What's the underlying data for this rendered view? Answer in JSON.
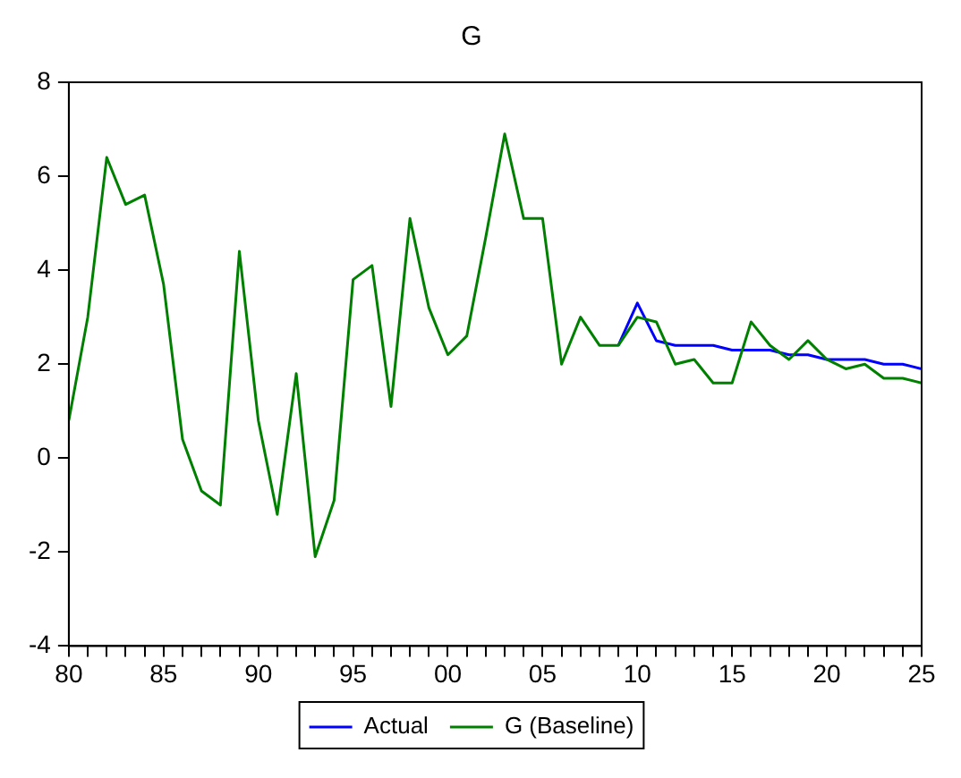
{
  "chart_data": {
    "type": "line",
    "title": "G",
    "x": [
      1980,
      1981,
      1982,
      1983,
      1984,
      1985,
      1986,
      1987,
      1988,
      1989,
      1990,
      1991,
      1992,
      1993,
      1994,
      1995,
      1996,
      1997,
      1998,
      1999,
      2000,
      2001,
      2002,
      2003,
      2004,
      2005,
      2006,
      2007,
      2008,
      2009,
      2010,
      2011,
      2012,
      2013,
      2014,
      2015,
      2016,
      2017,
      2018,
      2019,
      2020,
      2021,
      2022,
      2023,
      2024,
      2025
    ],
    "series": [
      {
        "name": "Actual",
        "color": "#0000ff",
        "values": [
          null,
          null,
          null,
          null,
          null,
          null,
          null,
          null,
          null,
          null,
          null,
          null,
          null,
          null,
          null,
          null,
          null,
          null,
          null,
          null,
          null,
          null,
          null,
          null,
          null,
          null,
          null,
          null,
          null,
          2.4,
          3.3,
          2.5,
          2.4,
          2.4,
          2.4,
          2.3,
          2.3,
          2.3,
          2.2,
          2.2,
          2.1,
          2.1,
          2.1,
          2.0,
          2.0,
          1.9
        ]
      },
      {
        "name": "G (Baseline)",
        "color": "#008000",
        "values": [
          0.8,
          3.0,
          6.4,
          5.4,
          5.6,
          3.7,
          0.4,
          -0.7,
          -1.0,
          4.4,
          0.8,
          -1.2,
          1.8,
          -2.1,
          -0.9,
          3.8,
          4.1,
          1.1,
          5.1,
          3.2,
          2.2,
          2.6,
          4.7,
          6.9,
          5.1,
          5.1,
          2.0,
          3.0,
          2.4,
          2.4,
          3.0,
          2.9,
          2.0,
          2.1,
          1.6,
          1.6,
          2.9,
          2.4,
          2.1,
          2.5,
          2.1,
          1.9,
          2.0,
          1.7,
          1.7,
          1.6
        ]
      }
    ],
    "xlim": [
      1980,
      2025
    ],
    "xticks": [
      {
        "value": 1980,
        "label": "80"
      },
      {
        "value": 1981,
        "label": null
      },
      {
        "value": 1982,
        "label": null
      },
      {
        "value": 1983,
        "label": null
      },
      {
        "value": 1984,
        "label": null
      },
      {
        "value": 1985,
        "label": "85"
      },
      {
        "value": 1986,
        "label": null
      },
      {
        "value": 1987,
        "label": null
      },
      {
        "value": 1988,
        "label": null
      },
      {
        "value": 1989,
        "label": null
      },
      {
        "value": 1990,
        "label": "90"
      },
      {
        "value": 1991,
        "label": null
      },
      {
        "value": 1992,
        "label": null
      },
      {
        "value": 1993,
        "label": null
      },
      {
        "value": 1994,
        "label": null
      },
      {
        "value": 1995,
        "label": "95"
      },
      {
        "value": 1996,
        "label": null
      },
      {
        "value": 1997,
        "label": null
      },
      {
        "value": 1998,
        "label": null
      },
      {
        "value": 1999,
        "label": null
      },
      {
        "value": 2000,
        "label": "00"
      },
      {
        "value": 2001,
        "label": null
      },
      {
        "value": 2002,
        "label": null
      },
      {
        "value": 2003,
        "label": null
      },
      {
        "value": 2004,
        "label": null
      },
      {
        "value": 2005,
        "label": "05"
      },
      {
        "value": 2006,
        "label": null
      },
      {
        "value": 2007,
        "label": null
      },
      {
        "value": 2008,
        "label": null
      },
      {
        "value": 2009,
        "label": null
      },
      {
        "value": 2010,
        "label": "10"
      },
      {
        "value": 2011,
        "label": null
      },
      {
        "value": 2012,
        "label": null
      },
      {
        "value": 2013,
        "label": null
      },
      {
        "value": 2014,
        "label": null
      },
      {
        "value": 2015,
        "label": "15"
      },
      {
        "value": 2016,
        "label": null
      },
      {
        "value": 2017,
        "label": null
      },
      {
        "value": 2018,
        "label": null
      },
      {
        "value": 2019,
        "label": null
      },
      {
        "value": 2020,
        "label": "20"
      },
      {
        "value": 2021,
        "label": null
      },
      {
        "value": 2022,
        "label": null
      },
      {
        "value": 2023,
        "label": null
      },
      {
        "value": 2024,
        "label": null
      },
      {
        "value": 2025,
        "label": "25"
      }
    ],
    "ylim": [
      -4,
      8
    ],
    "yticks": [
      -4,
      -2,
      0,
      2,
      4,
      6,
      8
    ],
    "grid": false,
    "legend": "bottom",
    "marker": "none",
    "line_style": "solid"
  }
}
